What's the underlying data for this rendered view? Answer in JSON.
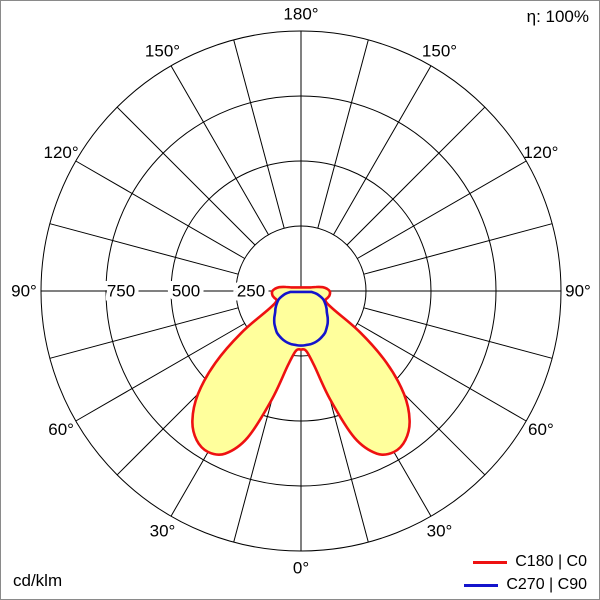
{
  "header": {
    "efficiency": "η: 100%"
  },
  "footer": {
    "unit": "cd/klm"
  },
  "legend": [
    {
      "label": "C180 | C0",
      "color": "#ee1111"
    },
    {
      "label": "C270 | C90",
      "color": "#1414cc"
    }
  ],
  "chart_data": {
    "type": "polar",
    "subtype": "photometric-intensity-distribution",
    "unit": "cd/klm",
    "efficiency": "η: 100%",
    "rmax": 1000,
    "radial_ticks": [
      250,
      500,
      750,
      1000
    ],
    "radial_tick_labels": [
      750,
      500,
      250
    ],
    "angle_step_deg": 15,
    "angle_labels_deg": [
      0,
      30,
      60,
      90,
      120,
      150,
      180
    ],
    "grid_color": "#000000",
    "series": [
      {
        "id": "c180-c0",
        "name": "C180 | C0",
        "color": "#ee1111",
        "fill": "#ffff9c",
        "points": [
          [
            -110,
            40
          ],
          [
            -105,
            60
          ],
          [
            -100,
            85
          ],
          [
            -95,
            100
          ],
          [
            -90,
            110
          ],
          [
            -85,
            112
          ],
          [
            -80,
            110
          ],
          [
            -75,
            105
          ],
          [
            -70,
            100
          ],
          [
            -65,
            110
          ],
          [
            -60,
            150
          ],
          [
            -55,
            280
          ],
          [
            -50,
            430
          ],
          [
            -45,
            560
          ],
          [
            -40,
            650
          ],
          [
            -35,
            700
          ],
          [
            -30,
            715
          ],
          [
            -25,
            690
          ],
          [
            -20,
            600
          ],
          [
            -15,
            430
          ],
          [
            -10,
            290
          ],
          [
            -5,
            232
          ],
          [
            0,
            225
          ],
          [
            5,
            232
          ],
          [
            10,
            290
          ],
          [
            15,
            430
          ],
          [
            20,
            600
          ],
          [
            25,
            690
          ],
          [
            30,
            715
          ],
          [
            35,
            700
          ],
          [
            40,
            650
          ],
          [
            45,
            560
          ],
          [
            50,
            430
          ],
          [
            55,
            280
          ],
          [
            60,
            150
          ],
          [
            65,
            110
          ],
          [
            70,
            100
          ],
          [
            75,
            105
          ],
          [
            80,
            110
          ],
          [
            85,
            112
          ],
          [
            90,
            110
          ],
          [
            95,
            100
          ],
          [
            100,
            85
          ],
          [
            105,
            60
          ],
          [
            110,
            40
          ]
        ]
      },
      {
        "id": "c270-c90",
        "name": "C270 | C90",
        "color": "#1414cc",
        "fill": "none",
        "points": [
          [
            -85,
            40
          ],
          [
            -80,
            60
          ],
          [
            -75,
            75
          ],
          [
            -70,
            90
          ],
          [
            -65,
            100
          ],
          [
            -60,
            110
          ],
          [
            -55,
            120
          ],
          [
            -50,
            130
          ],
          [
            -45,
            145
          ],
          [
            -40,
            160
          ],
          [
            -35,
            172
          ],
          [
            -30,
            185
          ],
          [
            -25,
            193
          ],
          [
            -20,
            200
          ],
          [
            -15,
            205
          ],
          [
            -10,
            208
          ],
          [
            -5,
            209
          ],
          [
            0,
            210
          ],
          [
            5,
            209
          ],
          [
            10,
            208
          ],
          [
            15,
            205
          ],
          [
            20,
            200
          ],
          [
            25,
            193
          ],
          [
            30,
            185
          ],
          [
            35,
            172
          ],
          [
            40,
            160
          ],
          [
            45,
            145
          ],
          [
            50,
            130
          ],
          [
            55,
            120
          ],
          [
            60,
            110
          ],
          [
            65,
            100
          ],
          [
            70,
            90
          ],
          [
            75,
            75
          ],
          [
            80,
            60
          ],
          [
            85,
            40
          ]
        ]
      }
    ]
  }
}
